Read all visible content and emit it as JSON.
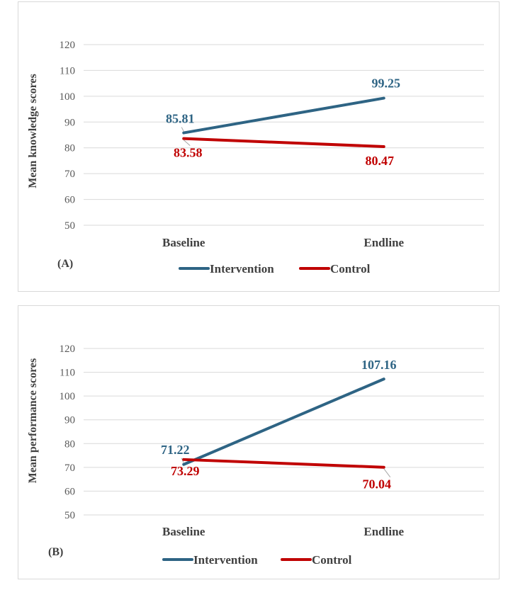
{
  "colors": {
    "intervention": "#2e6484",
    "control": "#c00000",
    "grid": "#d9d9d9"
  },
  "chart_data": [
    {
      "type": "line",
      "panel_label": "(A)",
      "ylabel": "Mean knowledge scores",
      "xlabel": "",
      "categories": [
        "Baseline",
        "Endline"
      ],
      "yticks": [
        50,
        60,
        70,
        80,
        90,
        100,
        110,
        120
      ],
      "ylim": [
        50,
        120
      ],
      "grid": true,
      "legend": "bottom-center",
      "series": [
        {
          "name": "Intervention",
          "values": [
            85.81,
            99.25
          ],
          "labels": [
            "85.81",
            "99.25"
          ]
        },
        {
          "name": "Control",
          "values": [
            83.58,
            80.47
          ],
          "labels": [
            "83.58",
            "80.47"
          ]
        }
      ]
    },
    {
      "type": "line",
      "panel_label": "(B)",
      "ylabel": "Mean performance scores",
      "xlabel": "",
      "categories": [
        "Baseline",
        "Endline"
      ],
      "yticks": [
        50,
        60,
        70,
        80,
        90,
        100,
        110,
        120
      ],
      "ylim": [
        50,
        120
      ],
      "grid": true,
      "legend": "bottom-center",
      "series": [
        {
          "name": "Intervention",
          "values": [
            71.22,
            107.16
          ],
          "labels": [
            "71.22",
            "107.16"
          ]
        },
        {
          "name": "Control",
          "values": [
            73.29,
            70.04
          ],
          "labels": [
            "73.29",
            "70.04"
          ]
        }
      ]
    }
  ]
}
